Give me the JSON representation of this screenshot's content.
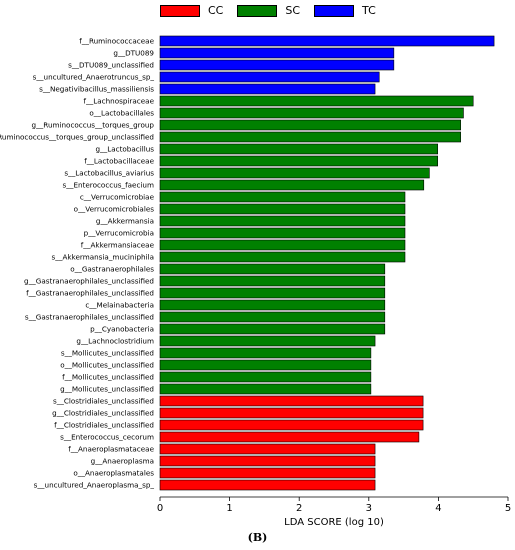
{
  "legend": [
    {
      "label": "CC",
      "color": "#ff0000"
    },
    {
      "label": "SC",
      "color": "#008000"
    },
    {
      "label": "TC",
      "color": "#0000ff"
    }
  ],
  "panel_label": "(B)",
  "chart_data": {
    "type": "bar",
    "orientation": "horizontal",
    "xlabel": "LDA SCORE (log 10)",
    "xlim": [
      0,
      5
    ],
    "xticks": [
      0,
      1,
      2,
      3,
      4,
      5
    ],
    "grid": false,
    "legend_position": "top",
    "bars": [
      {
        "label": "f__Ruminococcaceae",
        "value": 4.8,
        "group": "TC"
      },
      {
        "label": "g__DTU089",
        "value": 3.36,
        "group": "TC"
      },
      {
        "label": "s__DTU089_unclassified",
        "value": 3.36,
        "group": "TC"
      },
      {
        "label": "s__uncultured_Anaerotruncus_sp_",
        "value": 3.15,
        "group": "TC"
      },
      {
        "label": "s__Negativibacillus_massiliensis",
        "value": 3.09,
        "group": "TC"
      },
      {
        "label": "f__Lachnospiraceae",
        "value": 4.5,
        "group": "SC"
      },
      {
        "label": "o__Lactobacillales",
        "value": 4.36,
        "group": "SC"
      },
      {
        "label": "g__Ruminococcus__torques_group",
        "value": 4.32,
        "group": "SC"
      },
      {
        "label": "s__Ruminococcus__torques_group_unclassified",
        "value": 4.32,
        "group": "SC"
      },
      {
        "label": "g__Lactobacillus",
        "value": 3.99,
        "group": "SC"
      },
      {
        "label": "f__Lactobacillaceae",
        "value": 3.99,
        "group": "SC"
      },
      {
        "label": "s__Lactobacillus_aviarius",
        "value": 3.87,
        "group": "SC"
      },
      {
        "label": "s__Enterococcus_faecium",
        "value": 3.79,
        "group": "SC"
      },
      {
        "label": "c__Verrucomicrobiae",
        "value": 3.52,
        "group": "SC"
      },
      {
        "label": "o__Verrucomicrobiales",
        "value": 3.52,
        "group": "SC"
      },
      {
        "label": "g__Akkermansia",
        "value": 3.52,
        "group": "SC"
      },
      {
        "label": "p__Verrucomicrobia",
        "value": 3.52,
        "group": "SC"
      },
      {
        "label": "f__Akkermansiaceae",
        "value": 3.52,
        "group": "SC"
      },
      {
        "label": "s__Akkermansia_muciniphila",
        "value": 3.52,
        "group": "SC"
      },
      {
        "label": "o__Gastranaerophilales",
        "value": 3.23,
        "group": "SC"
      },
      {
        "label": "g__Gastranaerophilales_unclassified",
        "value": 3.23,
        "group": "SC"
      },
      {
        "label": "f__Gastranaerophilales_unclassified",
        "value": 3.23,
        "group": "SC"
      },
      {
        "label": "c__Melainabacteria",
        "value": 3.23,
        "group": "SC"
      },
      {
        "label": "s__Gastranaerophilales_unclassified",
        "value": 3.23,
        "group": "SC"
      },
      {
        "label": "p__Cyanobacteria",
        "value": 3.23,
        "group": "SC"
      },
      {
        "label": "g__Lachnoclostridium",
        "value": 3.09,
        "group": "SC"
      },
      {
        "label": "s__Mollicutes_unclassified",
        "value": 3.03,
        "group": "SC"
      },
      {
        "label": "o__Mollicutes_unclassified",
        "value": 3.03,
        "group": "SC"
      },
      {
        "label": "f__Mollicutes_unclassified",
        "value": 3.03,
        "group": "SC"
      },
      {
        "label": "g__Mollicutes_unclassified",
        "value": 3.03,
        "group": "SC"
      },
      {
        "label": "s__Clostridiales_unclassified",
        "value": 3.78,
        "group": "CC"
      },
      {
        "label": "g__Clostridiales_unclassified",
        "value": 3.78,
        "group": "CC"
      },
      {
        "label": "f__Clostridiales_unclassified",
        "value": 3.78,
        "group": "CC"
      },
      {
        "label": "s__Enterococcus_cecorum",
        "value": 3.72,
        "group": "CC"
      },
      {
        "label": "f__Anaeroplasmataceae",
        "value": 3.09,
        "group": "CC"
      },
      {
        "label": "g__Anaeroplasma",
        "value": 3.09,
        "group": "CC"
      },
      {
        "label": "o__Anaeroplasmatales",
        "value": 3.09,
        "group": "CC"
      },
      {
        "label": "s__uncultured_Anaeroplasma_sp_",
        "value": 3.09,
        "group": "CC"
      }
    ]
  }
}
